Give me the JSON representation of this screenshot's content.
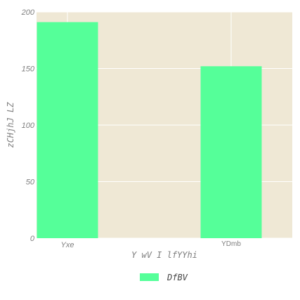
{
  "chart_data": {
    "type": "bar",
    "title": "",
    "xlabel": "Y wV I lfYYhi",
    "ylabel": "zCHjhJ LZ",
    "categories": [
      "Yxe",
      "YDmb"
    ],
    "series": [
      {
        "name": "DfBV",
        "values": [
          191,
          152
        ],
        "color": "#55ff99"
      }
    ],
    "ylim": [
      0,
      200
    ],
    "yticks": [
      0,
      50,
      100,
      150,
      200
    ],
    "grid": true,
    "legend_position": "bottom-center",
    "plot_background": "#efe8d5",
    "grid_color": "#ffffff"
  }
}
